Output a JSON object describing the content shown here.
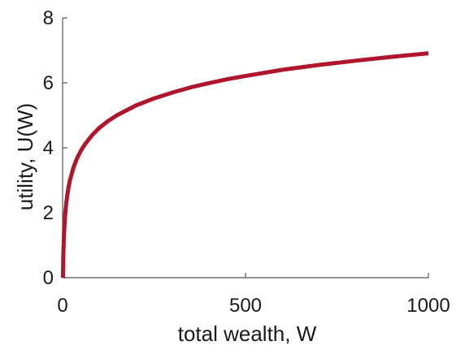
{
  "chart_data": {
    "type": "line",
    "title": "",
    "xlabel": "total wealth, W",
    "ylabel": "utility, U(W)",
    "xlim": [
      0,
      1000
    ],
    "ylim": [
      0,
      8
    ],
    "x_ticks": [
      0,
      500,
      1000
    ],
    "x_tick_labels": [
      "0",
      "500",
      "1000"
    ],
    "y_ticks": [
      0,
      2,
      4,
      6,
      8
    ],
    "y_tick_labels": [
      "0",
      "2",
      "4",
      "6",
      "8"
    ],
    "grid": false,
    "legend": "none",
    "series": [
      {
        "color": "#b0152b",
        "x": [
          1,
          2,
          4,
          7,
          10,
          15,
          20,
          30,
          40,
          50,
          60,
          80,
          100,
          125,
          150,
          200,
          250,
          300,
          350,
          400,
          450,
          500,
          600,
          700,
          800,
          900,
          1000
        ],
        "y": [
          0.0,
          0.69,
          1.39,
          1.95,
          2.3,
          2.71,
          3.0,
          3.4,
          3.69,
          3.91,
          4.09,
          4.38,
          4.61,
          4.83,
          5.01,
          5.3,
          5.52,
          5.7,
          5.86,
          5.99,
          6.11,
          6.21,
          6.4,
          6.55,
          6.68,
          6.8,
          6.91
        ]
      }
    ]
  }
}
